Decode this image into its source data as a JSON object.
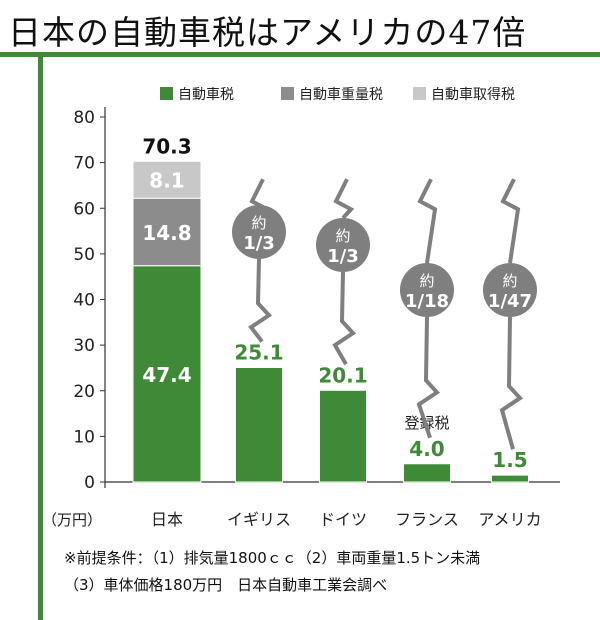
{
  "title": "日本の自動車税はアメリカの47倍",
  "colors": {
    "accent": "#3f8a36",
    "auto_tax": "#3f8a36",
    "weight_tax": "#8c8c8c",
    "acquisition_tax": "#c8c8c8",
    "ratio_badge": "#7f7f7f"
  },
  "chart_data": {
    "type": "bar",
    "stacked": true,
    "unit_label": "（万円）",
    "categories": [
      "日本",
      "イギリス",
      "ドイツ",
      "フランス",
      "アメリカ"
    ],
    "series": [
      {
        "name": "自動車税",
        "values": [
          47.4,
          25.1,
          20.1,
          4.0,
          1.5
        ]
      },
      {
        "name": "自動車重量税",
        "values": [
          14.8,
          0,
          0,
          0,
          0
        ]
      },
      {
        "name": "自動車取得税",
        "values": [
          8.1,
          0,
          0,
          0,
          0
        ]
      }
    ],
    "totals": [
      "70.3",
      null,
      null,
      null,
      null
    ],
    "value_labels": {
      "series0": [
        "47.4",
        "25.1",
        "20.1",
        "4.0",
        "1.5"
      ],
      "series1": [
        "14.8",
        null,
        null,
        null,
        null
      ],
      "series2": [
        "8.1",
        null,
        null,
        null,
        null
      ]
    },
    "annotations": [
      {
        "category": "イギリス",
        "ratio": "約1/3",
        "line1": "約",
        "line2": "1/3"
      },
      {
        "category": "ドイツ",
        "ratio": "約1/3",
        "line1": "約",
        "line2": "1/3"
      },
      {
        "category": "フランス",
        "ratio": "約1/18",
        "line1": "約",
        "line2": "1/18"
      },
      {
        "category": "アメリカ",
        "ratio": "約1/47",
        "line1": "約",
        "line2": "1/47"
      }
    ],
    "france_tax_name": "登録税",
    "yticks": [
      0,
      10,
      20,
      30,
      40,
      50,
      60,
      70,
      80
    ],
    "ylim": [
      0,
      80
    ],
    "grid": false,
    "legend": "top-right"
  },
  "footnote": {
    "line1": "※前提条件：（1）排気量1800ｃｃ（2）車両重量1.5トン未満",
    "line2": "（3）車体価格180万円　日本自動車工業会調べ"
  }
}
